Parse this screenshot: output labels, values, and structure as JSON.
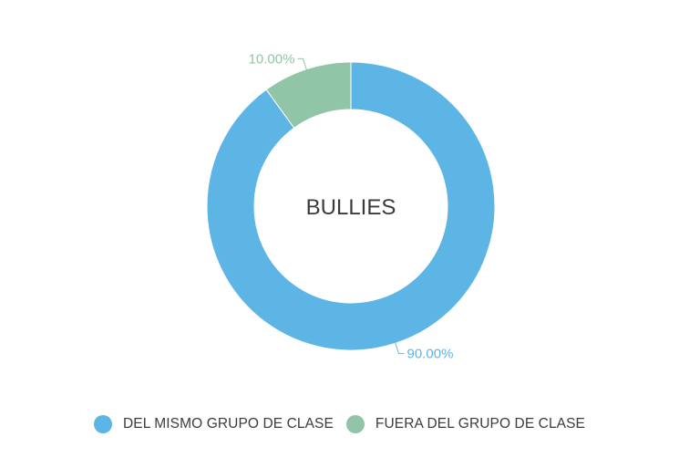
{
  "chart_data": {
    "type": "pie",
    "subtype": "donut",
    "title": "BULLIES",
    "categories": [
      "DEL MISMO GRUPO DE CLASE",
      "FUERA DEL GRUPO DE CLASE"
    ],
    "values": [
      90.0,
      10.0
    ],
    "data_labels": [
      "90.00%",
      "10.00%"
    ],
    "colors": [
      "#5db5e5",
      "#90c5a8"
    ],
    "legend_position": "bottom"
  }
}
